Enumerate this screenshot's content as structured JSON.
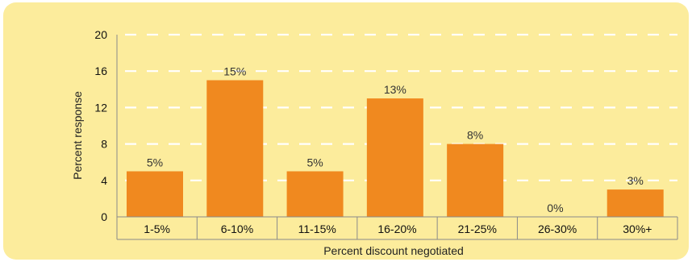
{
  "chart_data": {
    "type": "bar",
    "title": "",
    "xlabel": "Percent discount negotiated",
    "ylabel": "Percent response",
    "categories": [
      "1-5%",
      "6-10%",
      "11-15%",
      "16-20%",
      "21-25%",
      "26-30%",
      "30%+"
    ],
    "values": [
      5,
      15,
      5,
      13,
      8,
      0,
      3
    ],
    "data_labels": [
      "5%",
      "15%",
      "5%",
      "13%",
      "8%",
      "0%",
      "3%"
    ],
    "ylim": [
      0,
      20
    ],
    "yticks": [
      "0",
      "4",
      "8",
      "12",
      "16",
      "20"
    ],
    "grid": "dashed horizontal white lines",
    "colors": {
      "background": "#fcec9c",
      "bar": "#f0891f",
      "grid": "#ffffff",
      "axis": "#8a8a8a"
    }
  }
}
